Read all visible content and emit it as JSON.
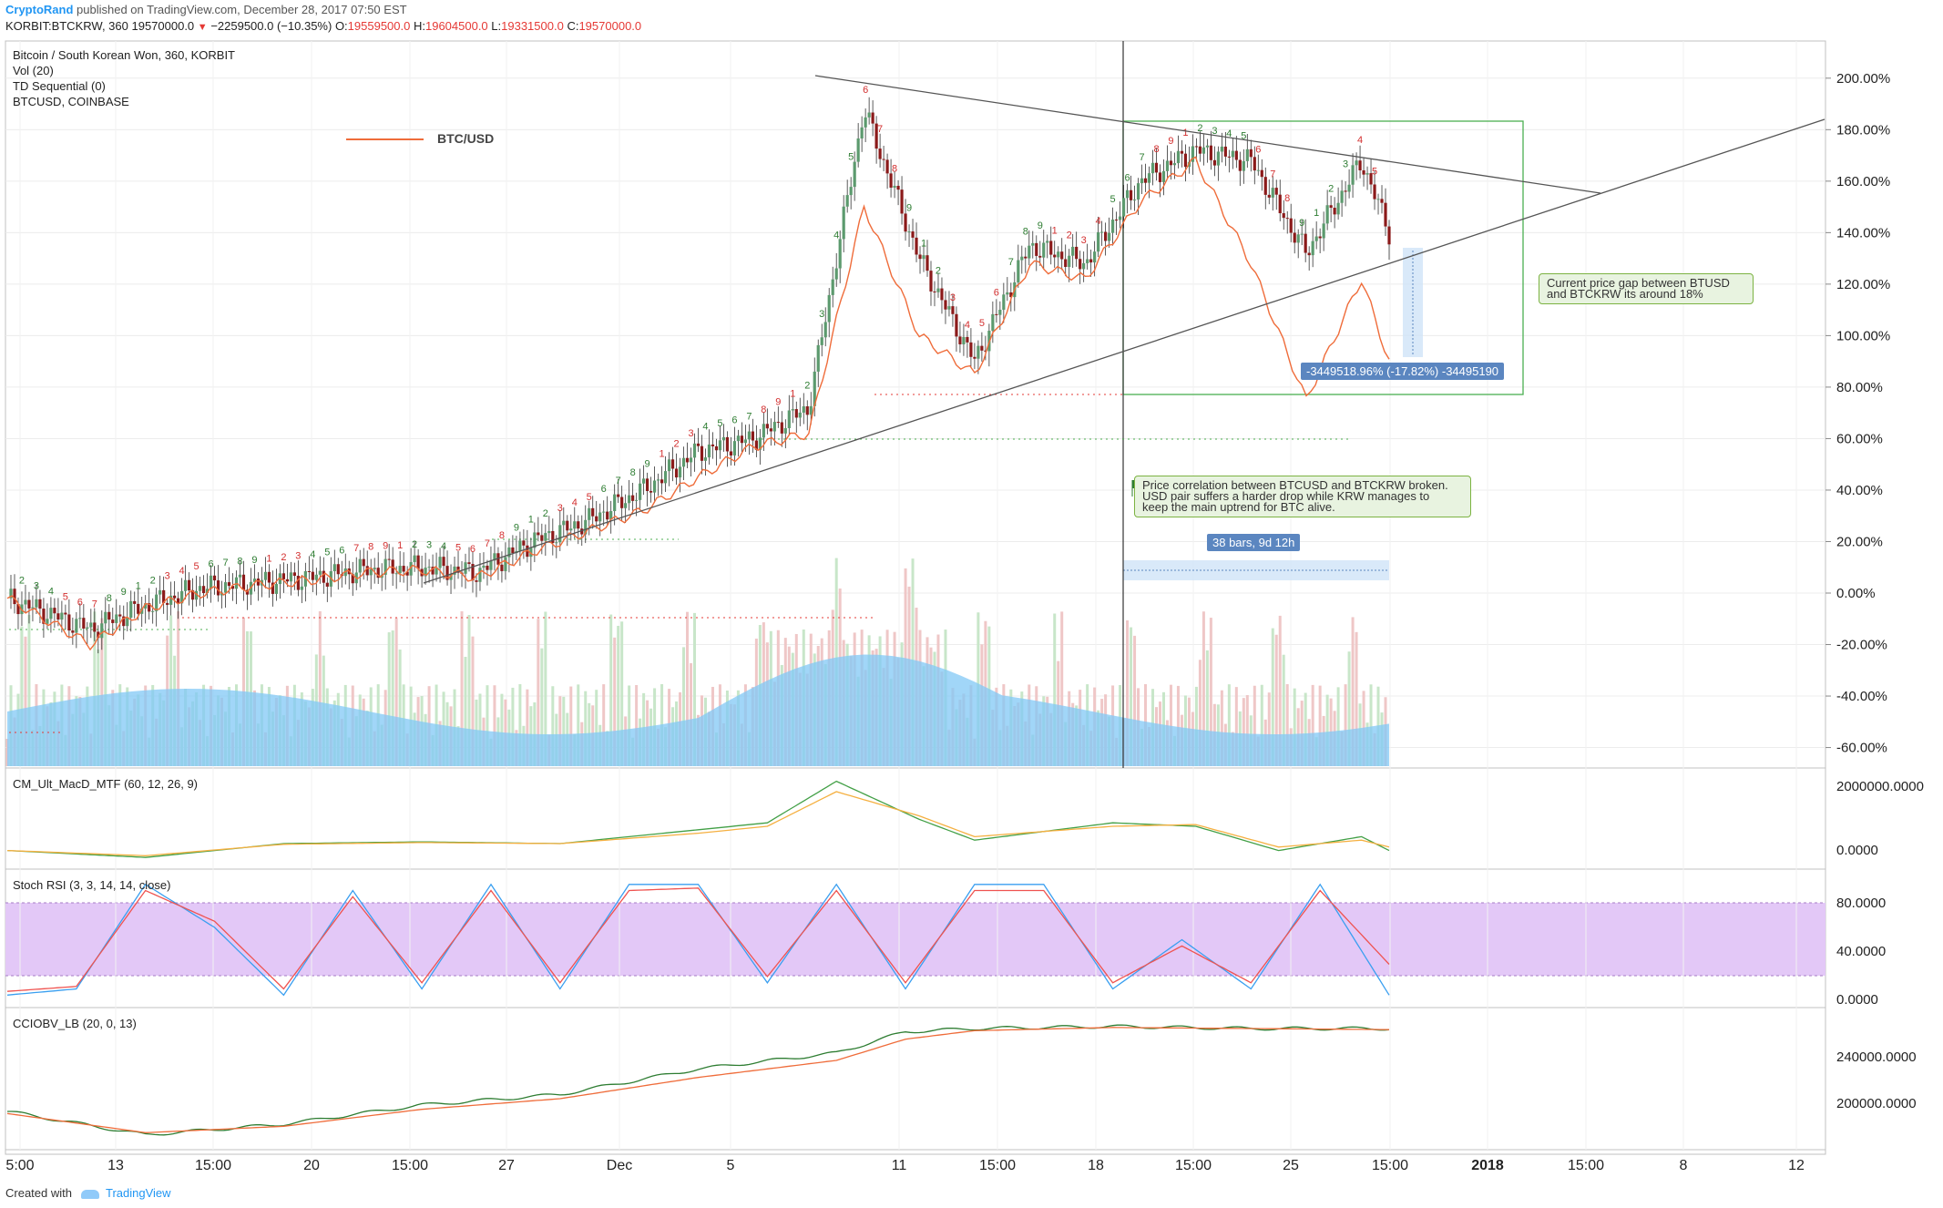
{
  "header": {
    "author": "CryptoRand",
    "published": "published on TradingView.com, December 28, 2017 07:50 EST",
    "symbol": "KORBIT:BTCKRW, 360",
    "last": "19570000.0",
    "change_arrow": "▼",
    "change": "−2259500.0 (−10.35%)",
    "open_label": "O:",
    "open": "19559500.0",
    "high_label": "H:",
    "high": "19604500.0",
    "low_label": "L:",
    "low": "19331500.0",
    "close_label": "C:",
    "close": "19570000.0"
  },
  "legend": {
    "main": "Bitcoin / South Korean Won, 360, KORBIT",
    "vol": "Vol (20)",
    "td": "TD Sequential (0)",
    "compare": "BTCUSD, COINBASE",
    "series_label": "BTC/USD"
  },
  "annotations": {
    "gap_note": "Current price gap between BTUSD\n and BTCKRW its around 18%",
    "measure": "-3449518.96% (-17.82%) -34495190",
    "correlation_note": "Price correlation between BTCUSD and BTCKRW broken.\nUSD pair suffers a harder drop while KRW manages to\nkeep the main uptrend for BTC alive.",
    "bars": "38 bars, 9d 12h"
  },
  "panes": {
    "macd": "CM_Ult_MacD_MTF (60, 12, 26, 9)",
    "stoch": "Stoch RSI (3, 3, 14, 14, close)",
    "cciobv": "CCIOBV_LB (20, 0, 13)"
  },
  "footer": {
    "created": "Created with",
    "brand": "TradingView"
  },
  "colors": {
    "bull": "#5c9a6e",
    "bear": "#8b1a1a",
    "usd": "#ef6c3a",
    "vol_area": "#81c8f5",
    "green_box": "#4caf50",
    "stoch_band": "#e3c8f7",
    "macd_fast": "#43a047",
    "macd_slow": "#f5b041"
  },
  "chart_data": [
    {
      "type": "candlestick",
      "title": "Bitcoin / South Korean Won, 360, KORBIT",
      "x_ticks": [
        "5:00",
        "13",
        "15:00",
        "20",
        "15:00",
        "27",
        "Dec",
        "5",
        "11",
        "15:00",
        "18",
        "15:00",
        "25",
        "15:00",
        "2018",
        "15:00",
        "8",
        "12"
      ],
      "y_axis_unit": "percent",
      "y_ticks": [
        "200.00%",
        "180.00%",
        "160.00%",
        "140.00%",
        "120.00%",
        "100.00%",
        "80.00%",
        "60.00%",
        "40.00%",
        "20.00%",
        "0.00%",
        "-20.00%",
        "-40.00%",
        "-60.00%"
      ],
      "ylim": [
        -65,
        212
      ],
      "series": [
        {
          "name": "BTCKRW",
          "x": [
            0,
            6,
            10,
            14,
            18,
            22,
            26,
            30,
            34,
            38,
            42,
            46,
            50,
            54,
            58,
            62,
            66,
            70,
            74,
            78,
            82,
            86,
            90,
            94,
            98,
            100
          ],
          "values": [
            -2,
            -14,
            -5,
            2,
            4,
            6,
            9,
            10,
            8,
            20,
            28,
            40,
            55,
            60,
            72,
            188,
            130,
            90,
            135,
            128,
            160,
            172,
            168,
            132,
            168,
            140
          ]
        },
        {
          "name": "BTC/USD",
          "x": [
            0,
            6,
            10,
            14,
            18,
            22,
            26,
            30,
            34,
            38,
            42,
            46,
            50,
            54,
            58,
            62,
            66,
            70,
            74,
            78,
            82,
            86,
            90,
            94,
            98,
            100
          ],
          "values": [
            -2,
            -20,
            -6,
            0,
            3,
            5,
            8,
            9,
            6,
            16,
            24,
            32,
            45,
            57,
            62,
            150,
            100,
            85,
            128,
            122,
            152,
            168,
            128,
            75,
            122,
            90
          ]
        }
      ],
      "volume_note": "Vol (20) histogram with moving average area in lower part of main pane"
    },
    {
      "type": "line",
      "title": "CM_Ult_MacD_MTF (60, 12, 26, 9)",
      "y_ticks": [
        "2000000.0000",
        "0.0000"
      ],
      "x": [
        0,
        10,
        20,
        30,
        40,
        50,
        55,
        60,
        66,
        70,
        80,
        86,
        92,
        98,
        100
      ],
      "series": [
        {
          "name": "MACD",
          "values": [
            0,
            -200000,
            200000,
            250000,
            200000,
            600000,
            800000,
            2000000,
            900000,
            300000,
            800000,
            700000,
            0,
            400000,
            0
          ]
        },
        {
          "name": "Signal",
          "values": [
            0,
            -150000,
            180000,
            230000,
            200000,
            500000,
            700000,
            1700000,
            1000000,
            400000,
            700000,
            750000,
            100000,
            300000,
            100000
          ]
        }
      ]
    },
    {
      "type": "line",
      "title": "Stoch RSI (3, 3, 14, 14, close)",
      "y_ticks": [
        "80.0000",
        "40.0000",
        "0.0000"
      ],
      "band": [
        20,
        80
      ],
      "x": [
        0,
        5,
        10,
        15,
        20,
        25,
        30,
        35,
        40,
        45,
        50,
        55,
        60,
        65,
        70,
        75,
        80,
        85,
        90,
        95,
        100
      ],
      "series": [
        {
          "name": "K",
          "values": [
            5,
            10,
            95,
            60,
            5,
            90,
            10,
            95,
            10,
            95,
            95,
            15,
            95,
            10,
            95,
            95,
            10,
            50,
            10,
            95,
            5
          ]
        },
        {
          "name": "D",
          "values": [
            8,
            12,
            90,
            65,
            10,
            85,
            15,
            90,
            15,
            90,
            92,
            20,
            90,
            15,
            90,
            90,
            15,
            45,
            15,
            90,
            30
          ]
        }
      ]
    },
    {
      "type": "line",
      "title": "CCIOBV_LB (20, 0, 13)",
      "y_ticks": [
        "240000.0000",
        "200000.0000"
      ],
      "x": [
        0,
        10,
        20,
        30,
        40,
        50,
        60,
        65,
        70,
        80,
        90,
        100
      ],
      "series": [
        {
          "name": "CCIOBV",
          "values": [
            190000,
            168000,
            178000,
            196000,
            206000,
            230000,
            245000,
            265000,
            268000,
            270000,
            268000,
            268000
          ]
        },
        {
          "name": "Signal",
          "values": [
            188000,
            170000,
            176000,
            192000,
            202000,
            222000,
            238000,
            258000,
            266000,
            269000,
            268000,
            267000
          ]
        }
      ]
    }
  ]
}
